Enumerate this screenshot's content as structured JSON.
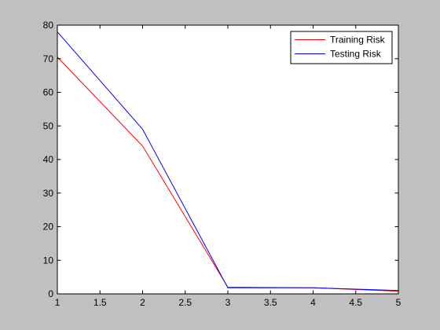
{
  "chart_data": {
    "type": "line",
    "x": [
      1,
      2,
      3,
      4,
      5
    ],
    "series": [
      {
        "name": "Training Risk",
        "color": "#ff0000",
        "values": [
          70.5,
          44.0,
          2.0,
          1.8,
          0.8
        ]
      },
      {
        "name": "Testing Risk",
        "color": "#0000ff",
        "values": [
          78.0,
          49.0,
          1.8,
          1.8,
          1.0
        ]
      }
    ],
    "xlim": [
      1,
      5
    ],
    "ylim": [
      0,
      80
    ],
    "xticks": [
      1,
      1.5,
      2,
      2.5,
      3,
      3.5,
      4,
      4.5,
      5
    ],
    "xtick_labels": [
      "1",
      "1.5",
      "2",
      "2.5",
      "3",
      "3.5",
      "4",
      "4.5",
      "5"
    ],
    "yticks": [
      0,
      10,
      20,
      30,
      40,
      50,
      60,
      70,
      80
    ],
    "ytick_labels": [
      "0",
      "10",
      "20",
      "30",
      "40",
      "50",
      "60",
      "70",
      "80"
    ],
    "title": "",
    "xlabel": "",
    "ylabel": "",
    "grid": false,
    "legend_position": "top-right",
    "figure_background": "#c0c0c0",
    "axes_background": "#ffffff"
  }
}
